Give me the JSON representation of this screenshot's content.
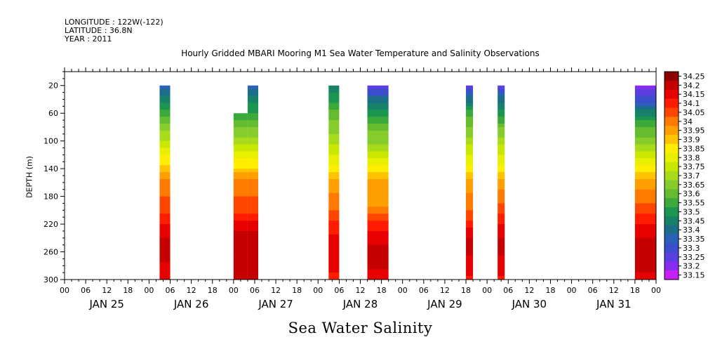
{
  "header": {
    "longitude": "LONGITUDE : 122W(-122)",
    "latitude": "LATITUDE : 36.8N",
    "year": "YEAR : 2011"
  },
  "chart_data": {
    "type": "heatmap",
    "title": "Hourly Gridded MBARI Mooring M1 Sea Water Temperature and Salinity Observations",
    "xlabel": "Sea Water Salinity",
    "ylabel": "DEPTH (m)",
    "x_start": "2011-01-25T00:00",
    "x_end": "2011-01-31T24:00",
    "x_hour_ticks": [
      "00",
      "06",
      "12",
      "18",
      "00",
      "06",
      "12",
      "18",
      "00",
      "06",
      "12",
      "18",
      "00",
      "06",
      "12",
      "18",
      "00",
      "06",
      "12",
      "18",
      "00",
      "06",
      "12",
      "18",
      "00",
      "06",
      "12",
      "18",
      "00"
    ],
    "day_labels": [
      "JAN 25",
      "JAN 26",
      "JAN 27",
      "JAN 28",
      "JAN 29",
      "JAN 30",
      "JAN 31"
    ],
    "ylim": [
      300,
      0
    ],
    "y_ticks": [
      20,
      60,
      100,
      140,
      180,
      220,
      260,
      300
    ],
    "colorbar": {
      "levels": [
        34.25,
        34.2,
        34.15,
        34.1,
        34.05,
        34,
        33.95,
        33.9,
        33.85,
        33.8,
        33.75,
        33.7,
        33.65,
        33.6,
        33.55,
        33.5,
        33.45,
        33.4,
        33.35,
        33.3,
        33.25,
        33.2,
        33.15
      ],
      "colors": [
        "#8b0000",
        "#c40000",
        "#e60000",
        "#ff1c00",
        "#ff4600",
        "#ff7a00",
        "#ff9f00",
        "#ffc400",
        "#ffee00",
        "#e8f000",
        "#c8e800",
        "#a8dc1a",
        "#86cc2c",
        "#64bc2e",
        "#3caa3a",
        "#1a9650",
        "#178268",
        "#1a6e8a",
        "#2a60b8",
        "#3a4ecc",
        "#5a3ee0",
        "#8a2cf0",
        "#c81ef8"
      ]
    },
    "segments": [
      {
        "start": "2011-01-26T03:00",
        "end": "2011-01-26T06:00",
        "depth_top": 20,
        "depth_bottom": 300,
        "profile": [
          [
            20,
            33.35
          ],
          [
            40,
            33.45
          ],
          [
            60,
            33.55
          ],
          [
            80,
            33.65
          ],
          [
            100,
            33.72
          ],
          [
            120,
            33.82
          ],
          [
            140,
            33.9
          ],
          [
            160,
            34.0
          ],
          [
            200,
            34.05
          ],
          [
            220,
            34.12
          ],
          [
            250,
            34.2
          ],
          [
            270,
            34.18
          ],
          [
            300,
            34.15
          ]
        ]
      },
      {
        "start": "2011-01-27T00:00",
        "end": "2011-01-27T04:00",
        "depth_top": 60,
        "depth_bottom": 300,
        "profile": [
          [
            60,
            33.52
          ],
          [
            80,
            33.62
          ],
          [
            100,
            33.7
          ],
          [
            120,
            33.8
          ],
          [
            140,
            33.88
          ],
          [
            160,
            34.0
          ],
          [
            200,
            34.05
          ],
          [
            220,
            34.15
          ],
          [
            240,
            34.2
          ],
          [
            280,
            34.22
          ],
          [
            300,
            34.18
          ]
        ]
      },
      {
        "start": "2011-01-27T04:00",
        "end": "2011-01-27T07:00",
        "depth_top": 20,
        "depth_bottom": 300,
        "profile": [
          [
            20,
            33.35
          ],
          [
            40,
            33.45
          ],
          [
            60,
            33.52
          ],
          [
            80,
            33.62
          ],
          [
            100,
            33.7
          ],
          [
            120,
            33.8
          ],
          [
            140,
            33.88
          ],
          [
            160,
            34.0
          ],
          [
            200,
            34.05
          ],
          [
            220,
            34.15
          ],
          [
            240,
            34.2
          ],
          [
            280,
            34.22
          ],
          [
            300,
            34.18
          ]
        ]
      },
      {
        "start": "2011-01-28T03:00",
        "end": "2011-01-28T06:00",
        "depth_top": 20,
        "depth_bottom": 300,
        "profile": [
          [
            20,
            33.45
          ],
          [
            40,
            33.5
          ],
          [
            60,
            33.6
          ],
          [
            80,
            33.65
          ],
          [
            100,
            33.7
          ],
          [
            120,
            33.78
          ],
          [
            140,
            33.85
          ],
          [
            160,
            33.95
          ],
          [
            200,
            34.02
          ],
          [
            220,
            34.1
          ],
          [
            250,
            34.15
          ],
          [
            300,
            34.12
          ]
        ]
      },
      {
        "start": "2011-01-28T14:00",
        "end": "2011-01-28T20:00",
        "depth_top": 20,
        "depth_bottom": 300,
        "profile": [
          [
            20,
            33.2
          ],
          [
            30,
            33.3
          ],
          [
            40,
            33.4
          ],
          [
            60,
            33.5
          ],
          [
            80,
            33.62
          ],
          [
            100,
            33.65
          ],
          [
            120,
            33.75
          ],
          [
            140,
            33.85
          ],
          [
            160,
            33.95
          ],
          [
            200,
            33.98
          ],
          [
            220,
            34.1
          ],
          [
            240,
            34.15
          ],
          [
            260,
            34.2
          ],
          [
            280,
            34.18
          ],
          [
            300,
            34.15
          ]
        ]
      },
      {
        "start": "2011-01-29T18:00",
        "end": "2011-01-29T20:00",
        "depth_top": 20,
        "depth_bottom": 300,
        "profile": [
          [
            20,
            33.25
          ],
          [
            40,
            33.4
          ],
          [
            60,
            33.55
          ],
          [
            80,
            33.62
          ],
          [
            100,
            33.7
          ],
          [
            120,
            33.78
          ],
          [
            140,
            33.85
          ],
          [
            160,
            33.95
          ],
          [
            200,
            34.02
          ],
          [
            220,
            34.1
          ],
          [
            250,
            34.2
          ],
          [
            280,
            34.15
          ],
          [
            300,
            34.12
          ]
        ]
      },
      {
        "start": "2011-01-30T03:00",
        "end": "2011-01-30T05:00",
        "depth_top": 20,
        "depth_bottom": 300,
        "profile": [
          [
            20,
            33.25
          ],
          [
            40,
            33.4
          ],
          [
            60,
            33.5
          ],
          [
            80,
            33.62
          ],
          [
            100,
            33.7
          ],
          [
            120,
            33.78
          ],
          [
            140,
            33.85
          ],
          [
            160,
            33.95
          ],
          [
            200,
            34.05
          ],
          [
            220,
            34.12
          ],
          [
            250,
            34.2
          ],
          [
            280,
            34.15
          ],
          [
            300,
            34.12
          ]
        ]
      },
      {
        "start": "2011-01-31T18:00",
        "end": "2011-01-31T24:00",
        "depth_top": 20,
        "depth_bottom": 300,
        "profile": [
          [
            20,
            33.2
          ],
          [
            40,
            33.3
          ],
          [
            60,
            33.45
          ],
          [
            80,
            33.58
          ],
          [
            100,
            33.65
          ],
          [
            120,
            33.75
          ],
          [
            140,
            33.85
          ],
          [
            160,
            33.95
          ],
          [
            180,
            34.0
          ],
          [
            200,
            34.05
          ],
          [
            220,
            34.12
          ],
          [
            240,
            34.18
          ],
          [
            260,
            34.22
          ],
          [
            280,
            34.2
          ],
          [
            300,
            34.15
          ]
        ]
      }
    ]
  }
}
